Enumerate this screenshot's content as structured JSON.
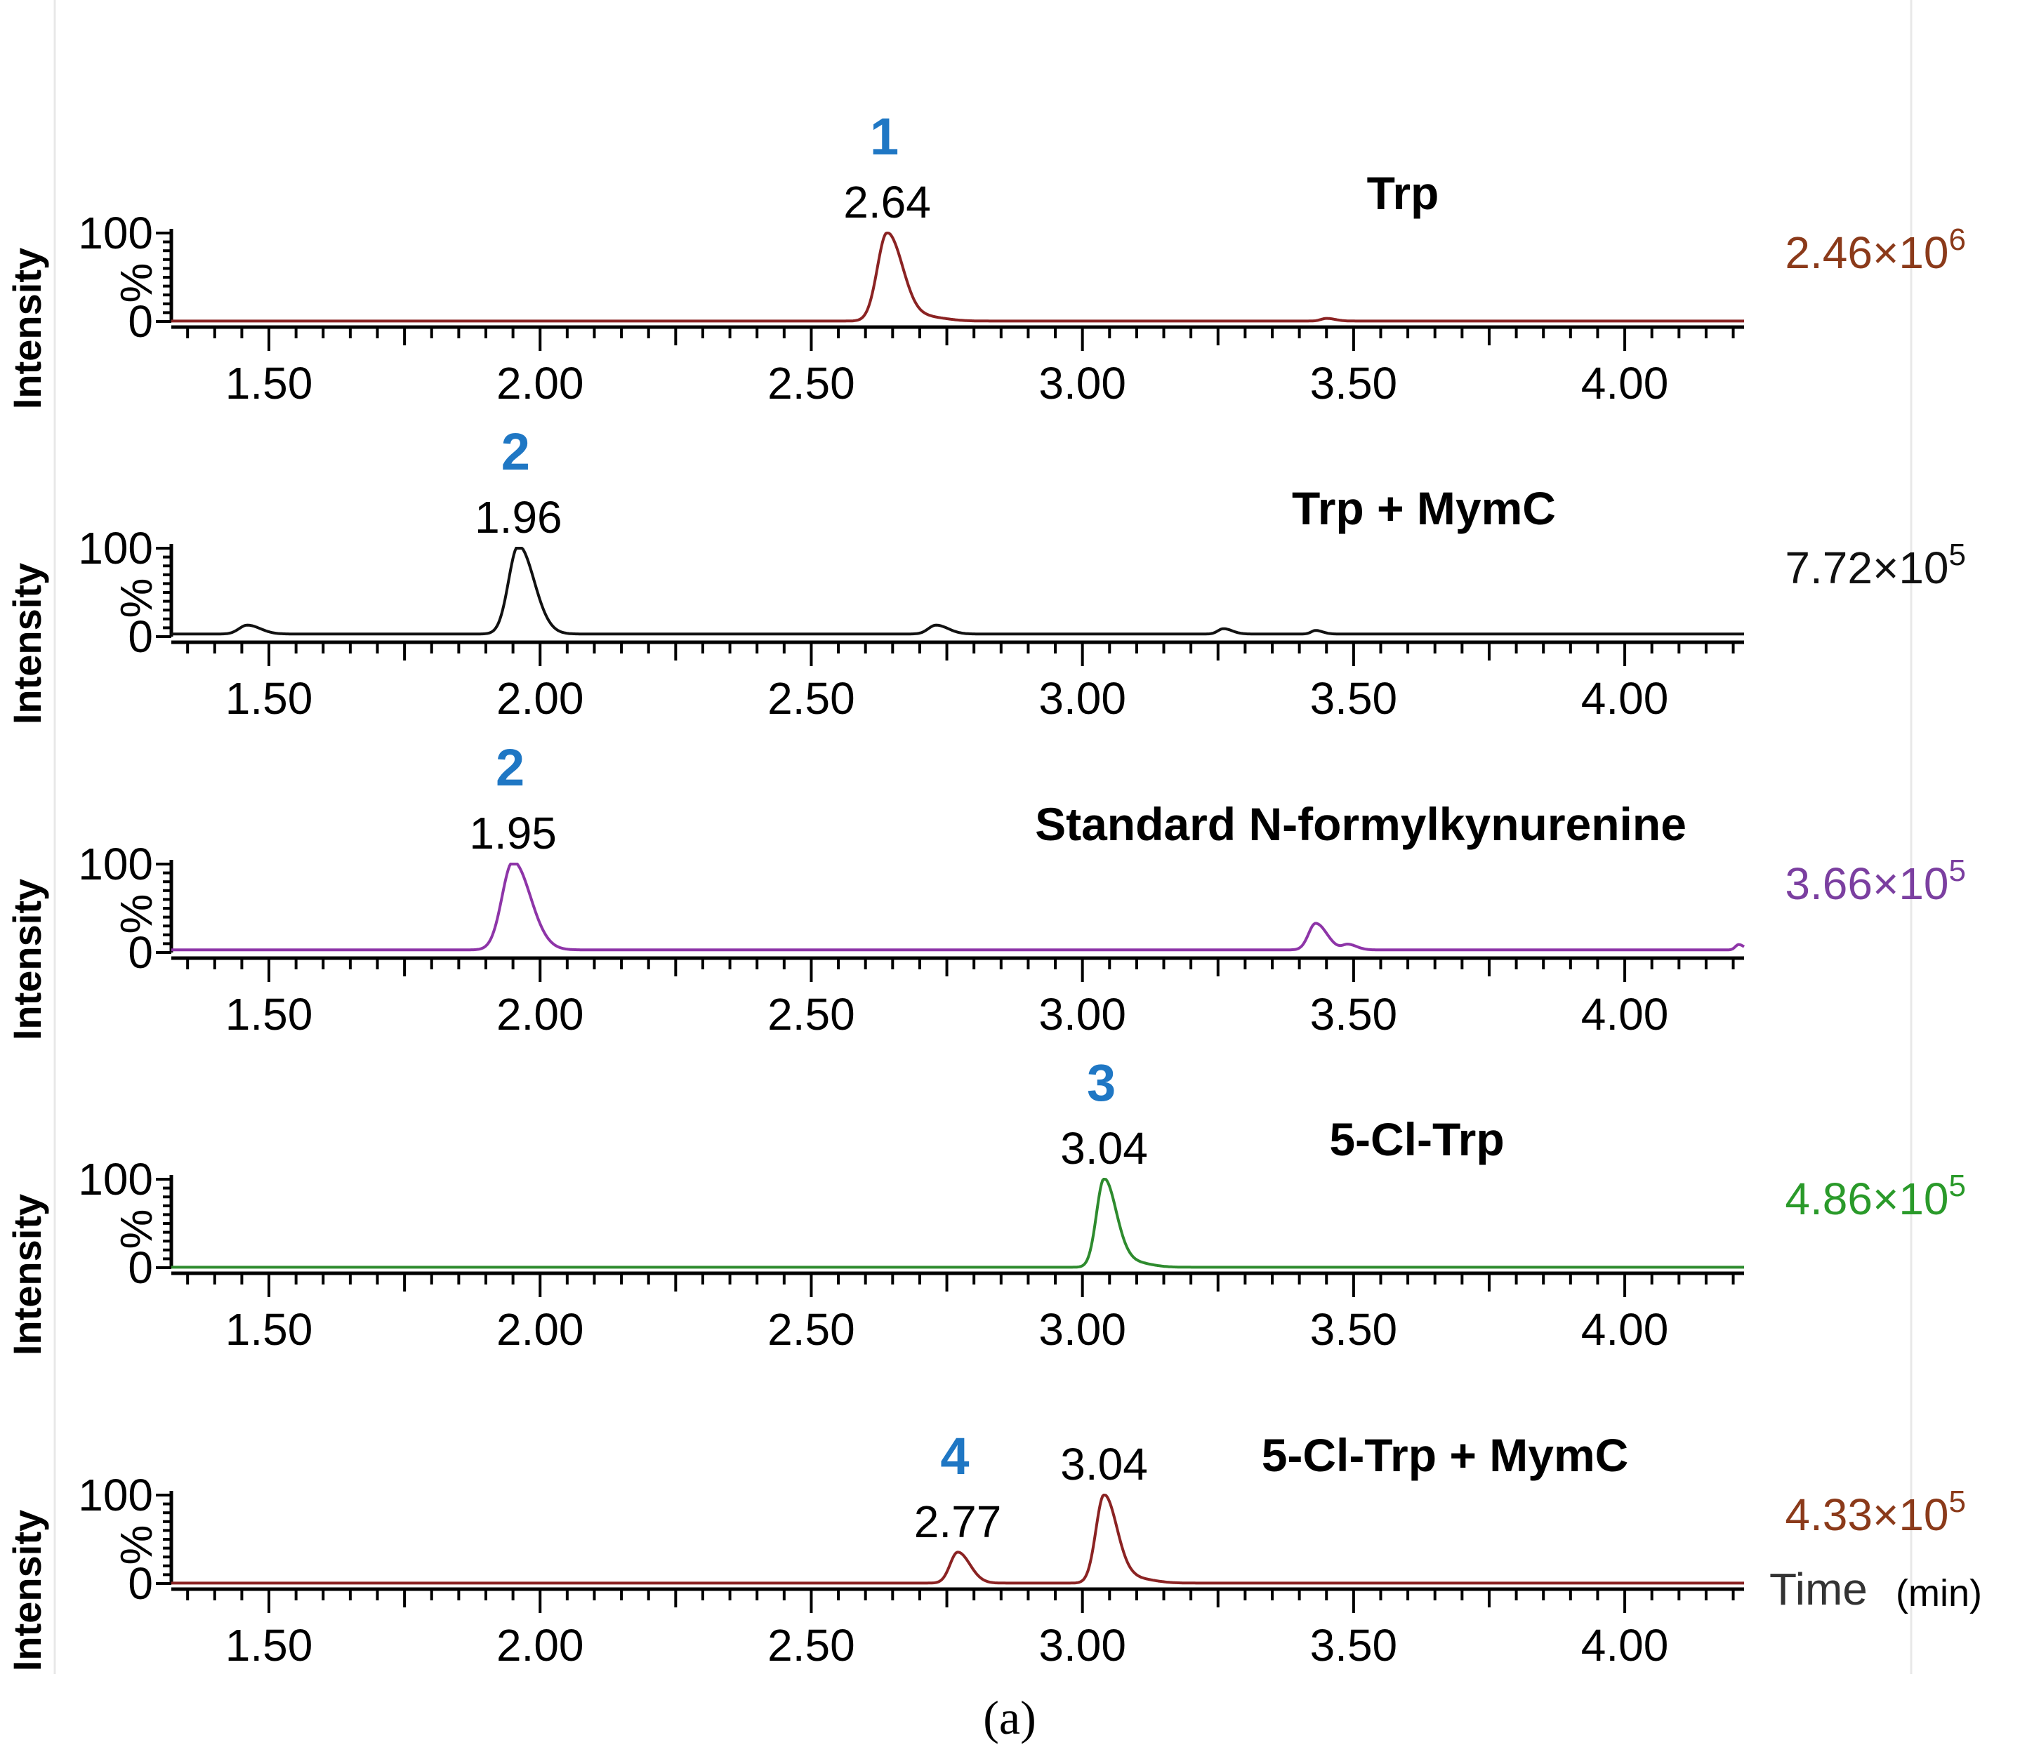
{
  "chart_data": {
    "type": "line",
    "xlim": [
      1.32,
      4.22
    ],
    "x_ticks": [
      "1.50",
      "2.00",
      "2.50",
      "3.00",
      "3.50",
      "4.00"
    ],
    "x_tick_values": [
      1.5,
      2.0,
      2.5,
      3.0,
      3.5,
      4.0
    ],
    "ylabel": "Intensity",
    "y_unit": "%",
    "y_ticks": [
      "100",
      "0"
    ],
    "ylim": [
      0,
      100
    ],
    "time_label": "Time",
    "time_unit": "(min)",
    "caption": "(a)",
    "panels": [
      {
        "title": "Trp",
        "color": "#8b2323",
        "scale_base": "2.46×10",
        "scale_exp": "6",
        "scale_color": "#8b3a1a",
        "peak_number": "1",
        "peaks": [
          {
            "rt": 2.64,
            "label": "2.64",
            "height": 100,
            "width": 0.018
          }
        ],
        "minor_peaks": [
          {
            "rt": 2.72,
            "height": 4,
            "width": 0.02
          },
          {
            "rt": 3.45,
            "height": 3,
            "width": 0.01
          }
        ],
        "baseline": 0.5,
        "series": []
      },
      {
        "title": "Trp + MymC",
        "color": "#111111",
        "scale_base": "7.72×10",
        "scale_exp": "5",
        "scale_color": "#111111",
        "peak_number": "2",
        "peaks": [
          {
            "rt": 1.96,
            "label": "1.96",
            "height": 100,
            "width": 0.018
          }
        ],
        "minor_peaks": [
          {
            "rt": 1.46,
            "height": 10,
            "width": 0.015
          },
          {
            "rt": 2.73,
            "height": 10,
            "width": 0.014
          },
          {
            "rt": 3.26,
            "height": 6,
            "width": 0.01
          },
          {
            "rt": 3.43,
            "height": 4,
            "width": 0.008
          }
        ],
        "baseline": 3,
        "series": []
      },
      {
        "title": "Standard N-formylkynurenine",
        "color": "#8e35a8",
        "scale_base": "3.66×10",
        "scale_exp": "5",
        "scale_color": "#7b3fa0",
        "peak_number": "2",
        "peaks": [
          {
            "rt": 1.95,
            "label": "1.95",
            "height": 100,
            "width": 0.02
          }
        ],
        "minor_peaks": [
          {
            "rt": 3.43,
            "height": 30,
            "width": 0.013
          },
          {
            "rt": 3.49,
            "height": 6,
            "width": 0.01
          },
          {
            "rt": 4.21,
            "height": 6,
            "width": 0.006
          }
        ],
        "baseline": 3,
        "series": []
      },
      {
        "title": "5-Cl-Trp",
        "color": "#2e8b2e",
        "scale_base": "4.86×10",
        "scale_exp": "5",
        "scale_color": "#2a9a2a",
        "peak_number": "3",
        "peaks": [
          {
            "rt": 3.04,
            "label": "3.04",
            "height": 100,
            "width": 0.014
          }
        ],
        "minor_peaks": [
          {
            "rt": 3.09,
            "height": 6,
            "width": 0.02
          }
        ],
        "baseline": 0.5,
        "series": []
      },
      {
        "title": "5-Cl-Trp + MymC",
        "color": "#8b2323",
        "scale_base": "4.33×10",
        "scale_exp": "5",
        "scale_color": "#8b3a1a",
        "peak_number": "4",
        "peaks": [
          {
            "rt": 2.77,
            "label": "2.77",
            "height": 35,
            "width": 0.014
          },
          {
            "rt": 3.04,
            "label": "3.04",
            "height": 100,
            "width": 0.015
          }
        ],
        "minor_peaks": [
          {
            "rt": 3.1,
            "height": 5,
            "width": 0.02
          }
        ],
        "baseline": 0.5,
        "series": []
      }
    ]
  }
}
